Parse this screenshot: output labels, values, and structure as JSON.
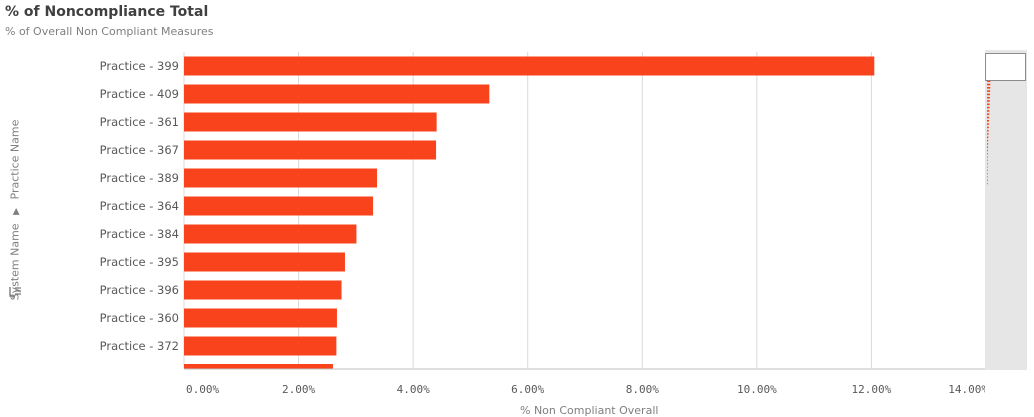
{
  "chart": {
    "title": "% of Noncompliance Total",
    "subtitle": "% of Overall Non Compliant Measures",
    "y_axis_label_system": "System Name",
    "y_axis_label_practice": "Practice Name",
    "x_axis_label": "% Non Compliant Overall"
  },
  "chart_data": {
    "type": "bar",
    "orientation": "horizontal",
    "title": "% of Noncompliance Total",
    "subtitle": "% of Overall Non Compliant Measures",
    "xlabel": "% Non Compliant Overall",
    "ylabel": "System Name > Practice Name",
    "categories": [
      "Practice - 399",
      "Practice - 409",
      "Practice - 361",
      "Practice - 367",
      "Practice - 389",
      "Practice - 364",
      "Practice - 384",
      "Practice - 395",
      "Practice - 396",
      "Practice - 360",
      "Practice - 372"
    ],
    "values": [
      12.05,
      5.33,
      4.41,
      4.4,
      3.37,
      3.3,
      3.01,
      2.81,
      2.75,
      2.67,
      2.66
    ],
    "x_ticks": [
      "0.00%",
      "2.00%",
      "4.00%",
      "6.00%",
      "8.00%",
      "10.00%",
      "12.00%",
      "14.00%"
    ],
    "xlim": [
      0,
      14
    ],
    "bar_color": "#f8431c",
    "grid": true
  },
  "colors": {
    "bar": "#f8431c",
    "grid": "#d9d9d9",
    "text": "#595959"
  }
}
